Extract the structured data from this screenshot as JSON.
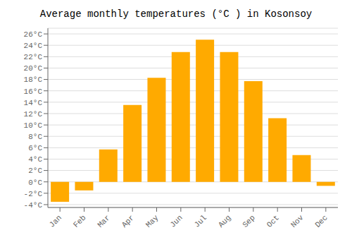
{
  "chart_data": {
    "type": "bar",
    "title": "Average monthly temperatures (°C ) in Kosonsoy",
    "categories": [
      "Jan",
      "Feb",
      "Mar",
      "Apr",
      "May",
      "Jun",
      "Jul",
      "Aug",
      "Sep",
      "Oct",
      "Nov",
      "Dec"
    ],
    "values": [
      -3.5,
      -1.5,
      5.7,
      13.5,
      18.3,
      22.8,
      25.0,
      22.8,
      17.7,
      11.2,
      4.7,
      -0.7
    ],
    "color": "#FFAA00",
    "ylim": [
      -4.5,
      27
    ],
    "yticks": [
      {
        "value": -4,
        "label": "-4°C"
      },
      {
        "value": -2,
        "label": "-2°C"
      },
      {
        "value": 0,
        "label": "0°C"
      },
      {
        "value": 2,
        "label": "2°C"
      },
      {
        "value": 4,
        "label": "4°C"
      },
      {
        "value": 6,
        "label": "6°C"
      },
      {
        "value": 8,
        "label": "8°C"
      },
      {
        "value": 10,
        "label": "10°C"
      },
      {
        "value": 12,
        "label": "12°C"
      },
      {
        "value": 14,
        "label": "14°C"
      },
      {
        "value": 16,
        "label": "16°C"
      },
      {
        "value": 18,
        "label": "18°C"
      },
      {
        "value": 20,
        "label": "20°C"
      },
      {
        "value": 22,
        "label": "22°C"
      },
      {
        "value": 24,
        "label": "24°C"
      },
      {
        "value": 26,
        "label": "26°C"
      }
    ],
    "grid": true
  }
}
